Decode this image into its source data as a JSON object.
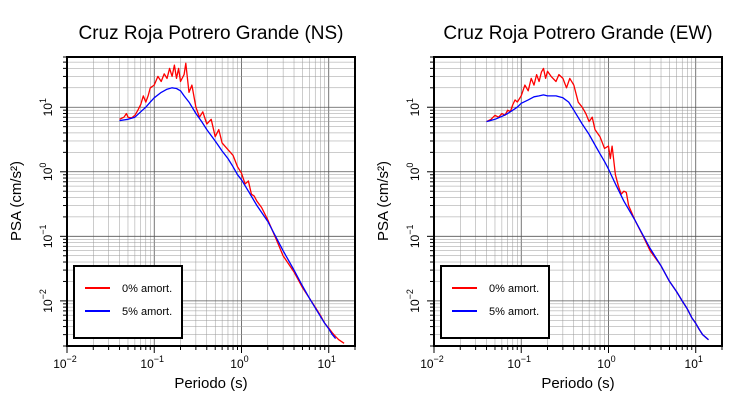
{
  "chart_data": [
    {
      "type": "line",
      "title": "Cruz Roja Potrero Grande (NS)",
      "xlabel": "Periodo (s)",
      "ylabel": "PSA (cm/s²)",
      "xscale": "log",
      "yscale": "log",
      "xlim": [
        0.01,
        20
      ],
      "ylim": [
        0.002,
        60
      ],
      "grid": true,
      "legend_position": "bottom-left",
      "x_ticks": [
        {
          "base": "10",
          "exp": "−2"
        },
        {
          "base": "10",
          "exp": "−1"
        },
        {
          "base": "10",
          "exp": "0"
        },
        {
          "base": "10",
          "exp": "1"
        }
      ],
      "y_ticks": [
        {
          "base": "10",
          "exp": "−2"
        },
        {
          "base": "10",
          "exp": "−1"
        },
        {
          "base": "10",
          "exp": "0"
        },
        {
          "base": "10",
          "exp": "1"
        }
      ],
      "series": [
        {
          "name": "0% amort.",
          "color": "#ff0000",
          "points": [
            [
              0.04,
              6.5
            ],
            [
              0.045,
              7
            ],
            [
              0.048,
              8
            ],
            [
              0.05,
              7
            ],
            [
              0.055,
              6.8
            ],
            [
              0.06,
              7.5
            ],
            [
              0.065,
              9
            ],
            [
              0.07,
              11
            ],
            [
              0.075,
              15
            ],
            [
              0.08,
              12
            ],
            [
              0.085,
              15
            ],
            [
              0.09,
              20
            ],
            [
              0.1,
              22
            ],
            [
              0.11,
              30
            ],
            [
              0.12,
              25
            ],
            [
              0.13,
              33
            ],
            [
              0.14,
              28
            ],
            [
              0.15,
              40
            ],
            [
              0.16,
              30
            ],
            [
              0.17,
              45
            ],
            [
              0.18,
              28
            ],
            [
              0.19,
              40
            ],
            [
              0.2,
              25
            ],
            [
              0.22,
              32
            ],
            [
              0.23,
              48
            ],
            [
              0.25,
              17
            ],
            [
              0.27,
              22
            ],
            [
              0.3,
              10
            ],
            [
              0.33,
              7
            ],
            [
              0.36,
              8.5
            ],
            [
              0.4,
              5.5
            ],
            [
              0.45,
              6.5
            ],
            [
              0.5,
              3.5
            ],
            [
              0.55,
              4.5
            ],
            [
              0.6,
              2.8
            ],
            [
              0.7,
              2.2
            ],
            [
              0.8,
              1.8
            ],
            [
              0.9,
              1.2
            ],
            [
              1.0,
              0.95
            ],
            [
              1.1,
              0.65
            ],
            [
              1.2,
              0.72
            ],
            [
              1.3,
              0.45
            ],
            [
              1.4,
              0.42
            ],
            [
              1.5,
              0.35
            ],
            [
              1.7,
              0.28
            ],
            [
              2.0,
              0.18
            ],
            [
              2.5,
              0.09
            ],
            [
              3.0,
              0.05
            ],
            [
              4.0,
              0.028
            ],
            [
              5.0,
              0.016
            ],
            [
              6.0,
              0.011
            ],
            [
              7.0,
              0.008
            ],
            [
              8.0,
              0.006
            ],
            [
              9.0,
              0.0045
            ],
            [
              10.0,
              0.0038
            ],
            [
              11.0,
              0.0032
            ],
            [
              12.0,
              0.0028
            ],
            [
              13.0,
              0.0025
            ],
            [
              15.0,
              0.0022
            ]
          ]
        },
        {
          "name": "5% amort.",
          "color": "#0000ff",
          "points": [
            [
              0.04,
              6.2
            ],
            [
              0.05,
              6.5
            ],
            [
              0.06,
              7
            ],
            [
              0.07,
              8.5
            ],
            [
              0.08,
              10
            ],
            [
              0.09,
              12
            ],
            [
              0.1,
              14
            ],
            [
              0.12,
              17
            ],
            [
              0.14,
              19
            ],
            [
              0.16,
              20
            ],
            [
              0.18,
              19.5
            ],
            [
              0.2,
              18
            ],
            [
              0.22,
              15
            ],
            [
              0.25,
              12
            ],
            [
              0.3,
              8
            ],
            [
              0.35,
              6
            ],
            [
              0.4,
              4.5
            ],
            [
              0.5,
              3
            ],
            [
              0.6,
              2.1
            ],
            [
              0.7,
              1.6
            ],
            [
              0.8,
              1.2
            ],
            [
              0.9,
              0.9
            ],
            [
              1.0,
              0.75
            ],
            [
              1.2,
              0.5
            ],
            [
              1.5,
              0.3
            ],
            [
              2.0,
              0.17
            ],
            [
              3.0,
              0.06
            ],
            [
              4.0,
              0.03
            ],
            [
              5.0,
              0.017
            ],
            [
              6.0,
              0.011
            ],
            [
              7.0,
              0.0078
            ],
            [
              8.0,
              0.0058
            ],
            [
              9.0,
              0.0045
            ],
            [
              10.0,
              0.0037
            ],
            [
              11.0,
              0.003
            ],
            [
              12.0,
              0.0026
            ]
          ]
        }
      ]
    },
    {
      "type": "line",
      "title": "Cruz Roja Potrero Grande (EW)",
      "xlabel": "Periodo (s)",
      "ylabel": "PSA (cm/s²)",
      "xscale": "log",
      "yscale": "log",
      "xlim": [
        0.01,
        20
      ],
      "ylim": [
        0.002,
        60
      ],
      "grid": true,
      "legend_position": "bottom-left",
      "x_ticks": [
        {
          "base": "10",
          "exp": "−2"
        },
        {
          "base": "10",
          "exp": "−1"
        },
        {
          "base": "10",
          "exp": "0"
        },
        {
          "base": "10",
          "exp": "1"
        }
      ],
      "y_ticks": [
        {
          "base": "10",
          "exp": "−2"
        },
        {
          "base": "10",
          "exp": "−1"
        },
        {
          "base": "10",
          "exp": "0"
        },
        {
          "base": "10",
          "exp": "1"
        }
      ],
      "series": [
        {
          "name": "0% amort.",
          "color": "#ff0000",
          "points": [
            [
              0.04,
              6
            ],
            [
              0.045,
              6.5
            ],
            [
              0.05,
              7.5
            ],
            [
              0.055,
              7
            ],
            [
              0.06,
              8
            ],
            [
              0.065,
              7.5
            ],
            [
              0.07,
              9
            ],
            [
              0.075,
              8.5
            ],
            [
              0.08,
              11
            ],
            [
              0.085,
              13
            ],
            [
              0.09,
              12
            ],
            [
              0.1,
              15
            ],
            [
              0.11,
              22
            ],
            [
              0.12,
              18
            ],
            [
              0.13,
              28
            ],
            [
              0.14,
              22
            ],
            [
              0.15,
              32
            ],
            [
              0.16,
              25
            ],
            [
              0.17,
              35
            ],
            [
              0.18,
              40
            ],
            [
              0.19,
              28
            ],
            [
              0.2,
              36
            ],
            [
              0.22,
              30
            ],
            [
              0.25,
              25
            ],
            [
              0.27,
              32
            ],
            [
              0.3,
              28
            ],
            [
              0.33,
              20
            ],
            [
              0.36,
              28
            ],
            [
              0.4,
              22
            ],
            [
              0.45,
              12
            ],
            [
              0.5,
              10
            ],
            [
              0.55,
              8
            ],
            [
              0.6,
              6
            ],
            [
              0.65,
              7
            ],
            [
              0.7,
              4.5
            ],
            [
              0.8,
              3.5
            ],
            [
              0.9,
              2.3
            ],
            [
              1.0,
              2.5
            ],
            [
              1.05,
              1.6
            ],
            [
              1.1,
              2.5
            ],
            [
              1.2,
              0.9
            ],
            [
              1.3,
              0.6
            ],
            [
              1.4,
              0.45
            ],
            [
              1.5,
              0.5
            ],
            [
              1.6,
              0.48
            ],
            [
              1.7,
              0.3
            ],
            [
              2.0,
              0.18
            ],
            [
              2.5,
              0.1
            ],
            [
              3.0,
              0.06
            ],
            [
              4.0,
              0.035
            ],
            [
              5.0,
              0.02
            ],
            [
              6.0,
              0.014
            ],
            [
              7.0,
              0.01
            ],
            [
              8.0,
              0.0075
            ],
            [
              9.0,
              0.0055
            ],
            [
              10.0,
              0.0045
            ],
            [
              11.0,
              0.0036
            ],
            [
              12.0,
              0.003
            ],
            [
              14.0,
              0.0025
            ]
          ]
        },
        {
          "name": "5% amort.",
          "color": "#0000ff",
          "points": [
            [
              0.04,
              6
            ],
            [
              0.05,
              6.5
            ],
            [
              0.06,
              7.2
            ],
            [
              0.07,
              8
            ],
            [
              0.08,
              9
            ],
            [
              0.09,
              10
            ],
            [
              0.1,
              11.5
            ],
            [
              0.12,
              13
            ],
            [
              0.14,
              14.5
            ],
            [
              0.16,
              15
            ],
            [
              0.18,
              15.5
            ],
            [
              0.2,
              15
            ],
            [
              0.25,
              15
            ],
            [
              0.3,
              14
            ],
            [
              0.35,
              12
            ],
            [
              0.4,
              9
            ],
            [
              0.5,
              5.5
            ],
            [
              0.6,
              3.8
            ],
            [
              0.7,
              2.6
            ],
            [
              0.8,
              1.9
            ],
            [
              0.9,
              1.45
            ],
            [
              1.0,
              1.1
            ],
            [
              1.2,
              0.65
            ],
            [
              1.5,
              0.35
            ],
            [
              2.0,
              0.18
            ],
            [
              3.0,
              0.065
            ],
            [
              4.0,
              0.035
            ],
            [
              5.0,
              0.02
            ],
            [
              6.0,
              0.014
            ],
            [
              7.0,
              0.01
            ],
            [
              8.0,
              0.0075
            ],
            [
              9.0,
              0.0055
            ],
            [
              10.0,
              0.0045
            ],
            [
              11.0,
              0.0036
            ],
            [
              12.0,
              0.003
            ],
            [
              14.0,
              0.0025
            ]
          ]
        }
      ]
    }
  ]
}
